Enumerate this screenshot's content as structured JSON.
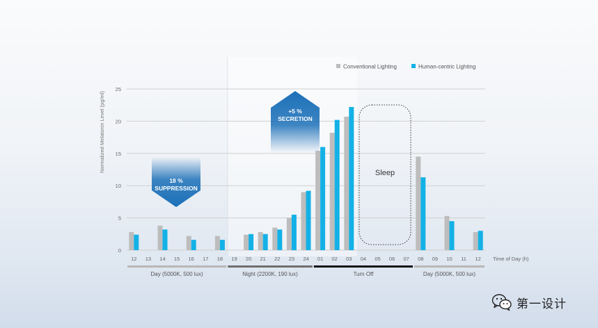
{
  "colors": {
    "conventional": "#bdbdbd",
    "human_centric": "#13b1e6",
    "badge": "#1c70b8",
    "bar_day": "#b8b8b8",
    "bar_night": "#6e6e6e",
    "bar_off": "#111111",
    "grid": "#cfcfcf"
  },
  "chart_data": {
    "type": "bar",
    "xlabel": "Time of Day (h)",
    "ylabel": "Normalized Melatonin Level (pg/ml)",
    "ylim": [
      0,
      25
    ],
    "yticks": [
      "0",
      "5",
      "10",
      "15",
      "20",
      "25"
    ],
    "grid": true,
    "legend_position": "top-right",
    "categories": [
      "12",
      "13",
      "14",
      "15",
      "16",
      "17",
      "18",
      "19",
      "20",
      "21",
      "22",
      "23",
      "24",
      "01",
      "02",
      "03",
      "04",
      "05",
      "06",
      "07",
      "08",
      "09",
      "10",
      "11",
      "12"
    ],
    "series": [
      {
        "name": "Conventional Lighting",
        "values": [
          2.8,
          0,
          3.8,
          0,
          2.2,
          0,
          2.2,
          0,
          2.4,
          2.8,
          3.5,
          5.0,
          9.0,
          15.4,
          18.2,
          20.7,
          0,
          0,
          0,
          0,
          14.5,
          0,
          5.3,
          0,
          2.8
        ]
      },
      {
        "name": "Human-centric Lighting",
        "values": [
          2.4,
          0,
          3.2,
          0,
          1.6,
          0,
          1.6,
          0,
          2.5,
          2.5,
          3.2,
          5.5,
          9.2,
          16.0,
          20.2,
          22.2,
          0,
          0,
          0,
          0,
          11.3,
          0,
          4.5,
          0,
          3.0
        ]
      }
    ],
    "periods": [
      {
        "label": "Day (5000K, 500 lux)",
        "from": "12",
        "to": "18"
      },
      {
        "label": "Night (2200K, 190 lux)",
        "from": "19",
        "to": "24"
      },
      {
        "label": "Turn Off",
        "from": "01",
        "to": "07"
      },
      {
        "label": "Day (5000K, 500 lux)",
        "from": "08",
        "to": "12"
      }
    ],
    "annotations": {
      "suppression": [
        "18 %",
        "SUPPRESSION"
      ],
      "secretion": [
        "+5 %",
        "SECRETION"
      ],
      "sleep": "Sleep"
    }
  },
  "watermark": {
    "text": "第一设计",
    "icon": "wechat-icon"
  }
}
